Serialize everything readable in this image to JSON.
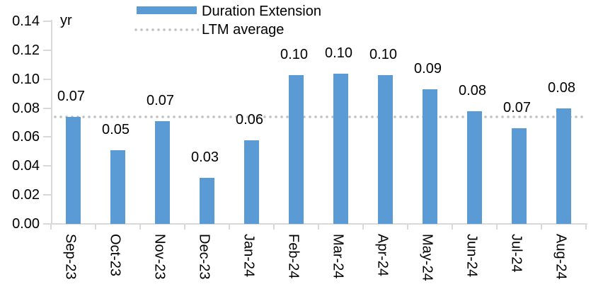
{
  "chart_data": {
    "type": "bar",
    "unit_label": "yr",
    "categories": [
      "Sep-23",
      "Oct-23",
      "Nov-23",
      "Dec-23",
      "Jan-24",
      "Feb-24",
      "Mar-24",
      "Apr-24",
      "May-24",
      "Jun-24",
      "Jul-24",
      "Aug-24"
    ],
    "series": [
      {
        "name": "Duration Extension",
        "values": [
          0.074,
          0.051,
          0.071,
          0.032,
          0.058,
          0.103,
          0.104,
          0.103,
          0.093,
          0.078,
          0.066,
          0.08
        ],
        "data_labels": [
          "0.07",
          "0.05",
          "0.07",
          "0.03",
          "0.06",
          "0.10",
          "0.10",
          "0.10",
          "0.09",
          "0.08",
          "0.07",
          "0.08"
        ]
      }
    ],
    "ltm_average": {
      "name": "LTM average",
      "value": 0.074
    },
    "ylim": [
      0,
      0.14
    ],
    "ytick_labels": [
      "0.00",
      "0.02",
      "0.04",
      "0.06",
      "0.08",
      "0.10",
      "0.12",
      "0.14"
    ],
    "legend_position": "top-center",
    "grid": false,
    "bar_color": "#5b9bd5",
    "ltm_line_color": "#bfbfbf",
    "axis_color": "#d9d9d9",
    "text_color": "#000000"
  }
}
